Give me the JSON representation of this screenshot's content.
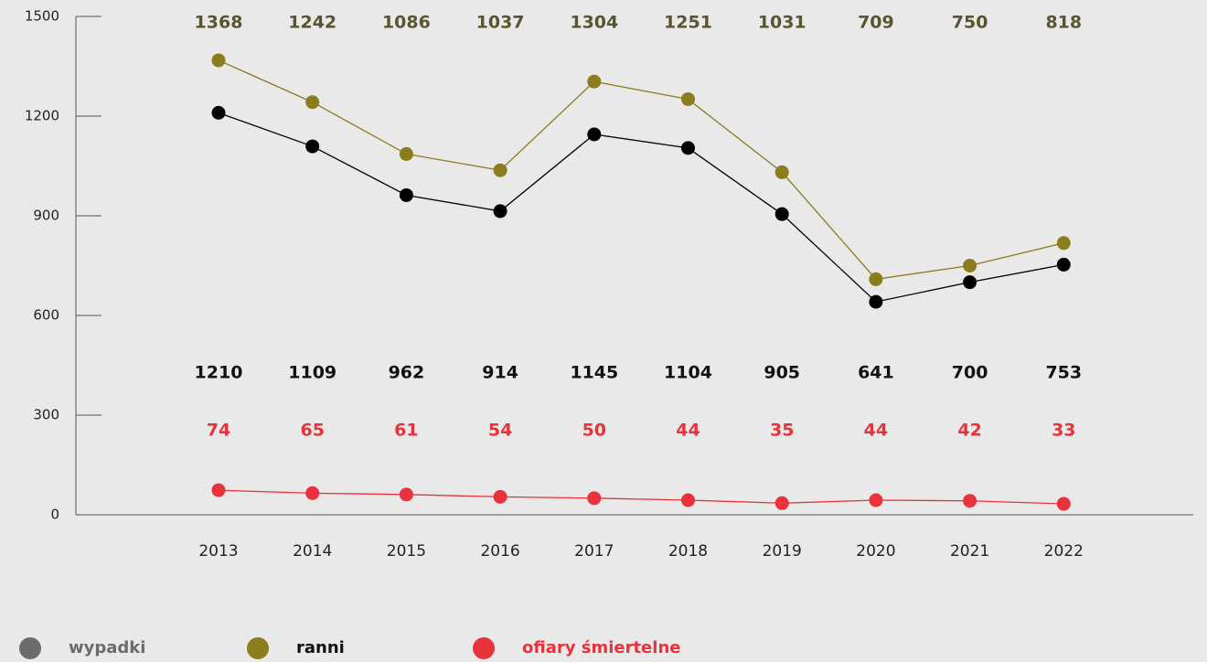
{
  "chart_data": {
    "type": "line",
    "categories": [
      "2013",
      "2014",
      "2015",
      "2016",
      "2017",
      "2018",
      "2019",
      "2020",
      "2021",
      "2022"
    ],
    "series": [
      {
        "name": "wypadki",
        "color": "#000000",
        "values": [
          1210,
          1109,
          962,
          914,
          1145,
          1104,
          905,
          641,
          700,
          753
        ]
      },
      {
        "name": "ranni",
        "color": "#8b7d1e",
        "values": [
          1368,
          1242,
          1086,
          1037,
          1304,
          1251,
          1031,
          709,
          750,
          818
        ]
      },
      {
        "name": "ofiary śmiertelne",
        "color": "#e8333c",
        "values": [
          74,
          65,
          61,
          54,
          50,
          44,
          35,
          44,
          42,
          33
        ]
      }
    ],
    "ylim": [
      0,
      1500
    ],
    "yticks": [
      0,
      300,
      600,
      900,
      1200,
      1500
    ],
    "legend": "bottom-left"
  }
}
